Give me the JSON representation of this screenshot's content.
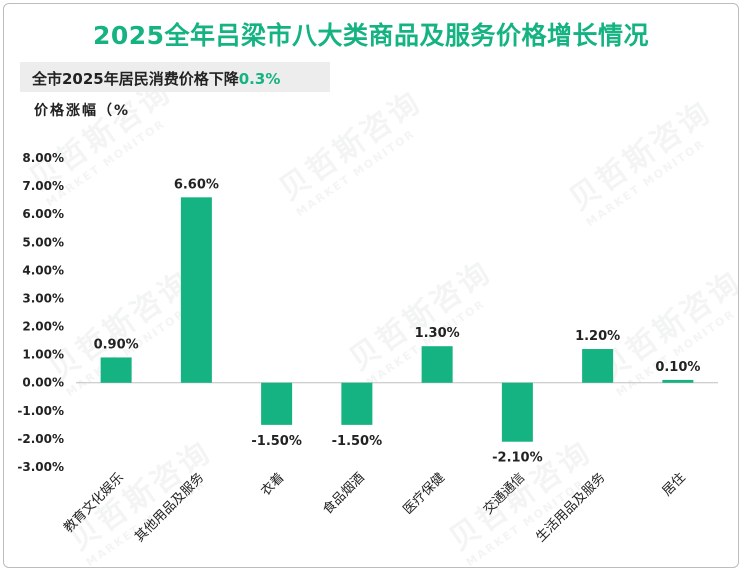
{
  "title": "2025全年吕梁市八大类商品及服务价格增长情况",
  "subtitle": {
    "prefix": "全市2025年居民消费价格下降",
    "highlight": "0.3%"
  },
  "watermark": {
    "cn": "贝哲斯咨询",
    "en": "MARKET MONITOR"
  },
  "colors": {
    "accent": "#14b381",
    "bar": "#14b381",
    "text": "#222222"
  },
  "chart_data": {
    "type": "bar",
    "title": "2025全年吕梁市八大类商品及服务价格增长情况",
    "ylabel": "价格涨幅（%",
    "xlabel": "",
    "categories": [
      "教育文化娱乐",
      "其他用品及服务",
      "衣着",
      "食品烟酒",
      "医疗保健",
      "交通通信",
      "生活用品及服务",
      "居住"
    ],
    "values": [
      0.9,
      6.6,
      -1.5,
      -1.5,
      1.3,
      -2.1,
      1.2,
      0.1
    ],
    "data_labels": [
      "0.90%",
      "6.60%",
      "-1.50%",
      "-1.50%",
      "1.30%",
      "-2.10%",
      "1.20%",
      "0.10%"
    ],
    "ylim": [
      -3,
      8
    ],
    "yticks": [
      8,
      7,
      6,
      5,
      4,
      3,
      2,
      1,
      0,
      -1,
      -2,
      -3
    ],
    "ytick_labels": [
      "8.00%",
      "7.00%",
      "6.00%",
      "5.00%",
      "4.00%",
      "3.00%",
      "2.00%",
      "1.00%",
      "0.00%",
      "-1.00%",
      "-2.00%",
      "-3.00%"
    ],
    "grid": false,
    "legend": "none"
  }
}
